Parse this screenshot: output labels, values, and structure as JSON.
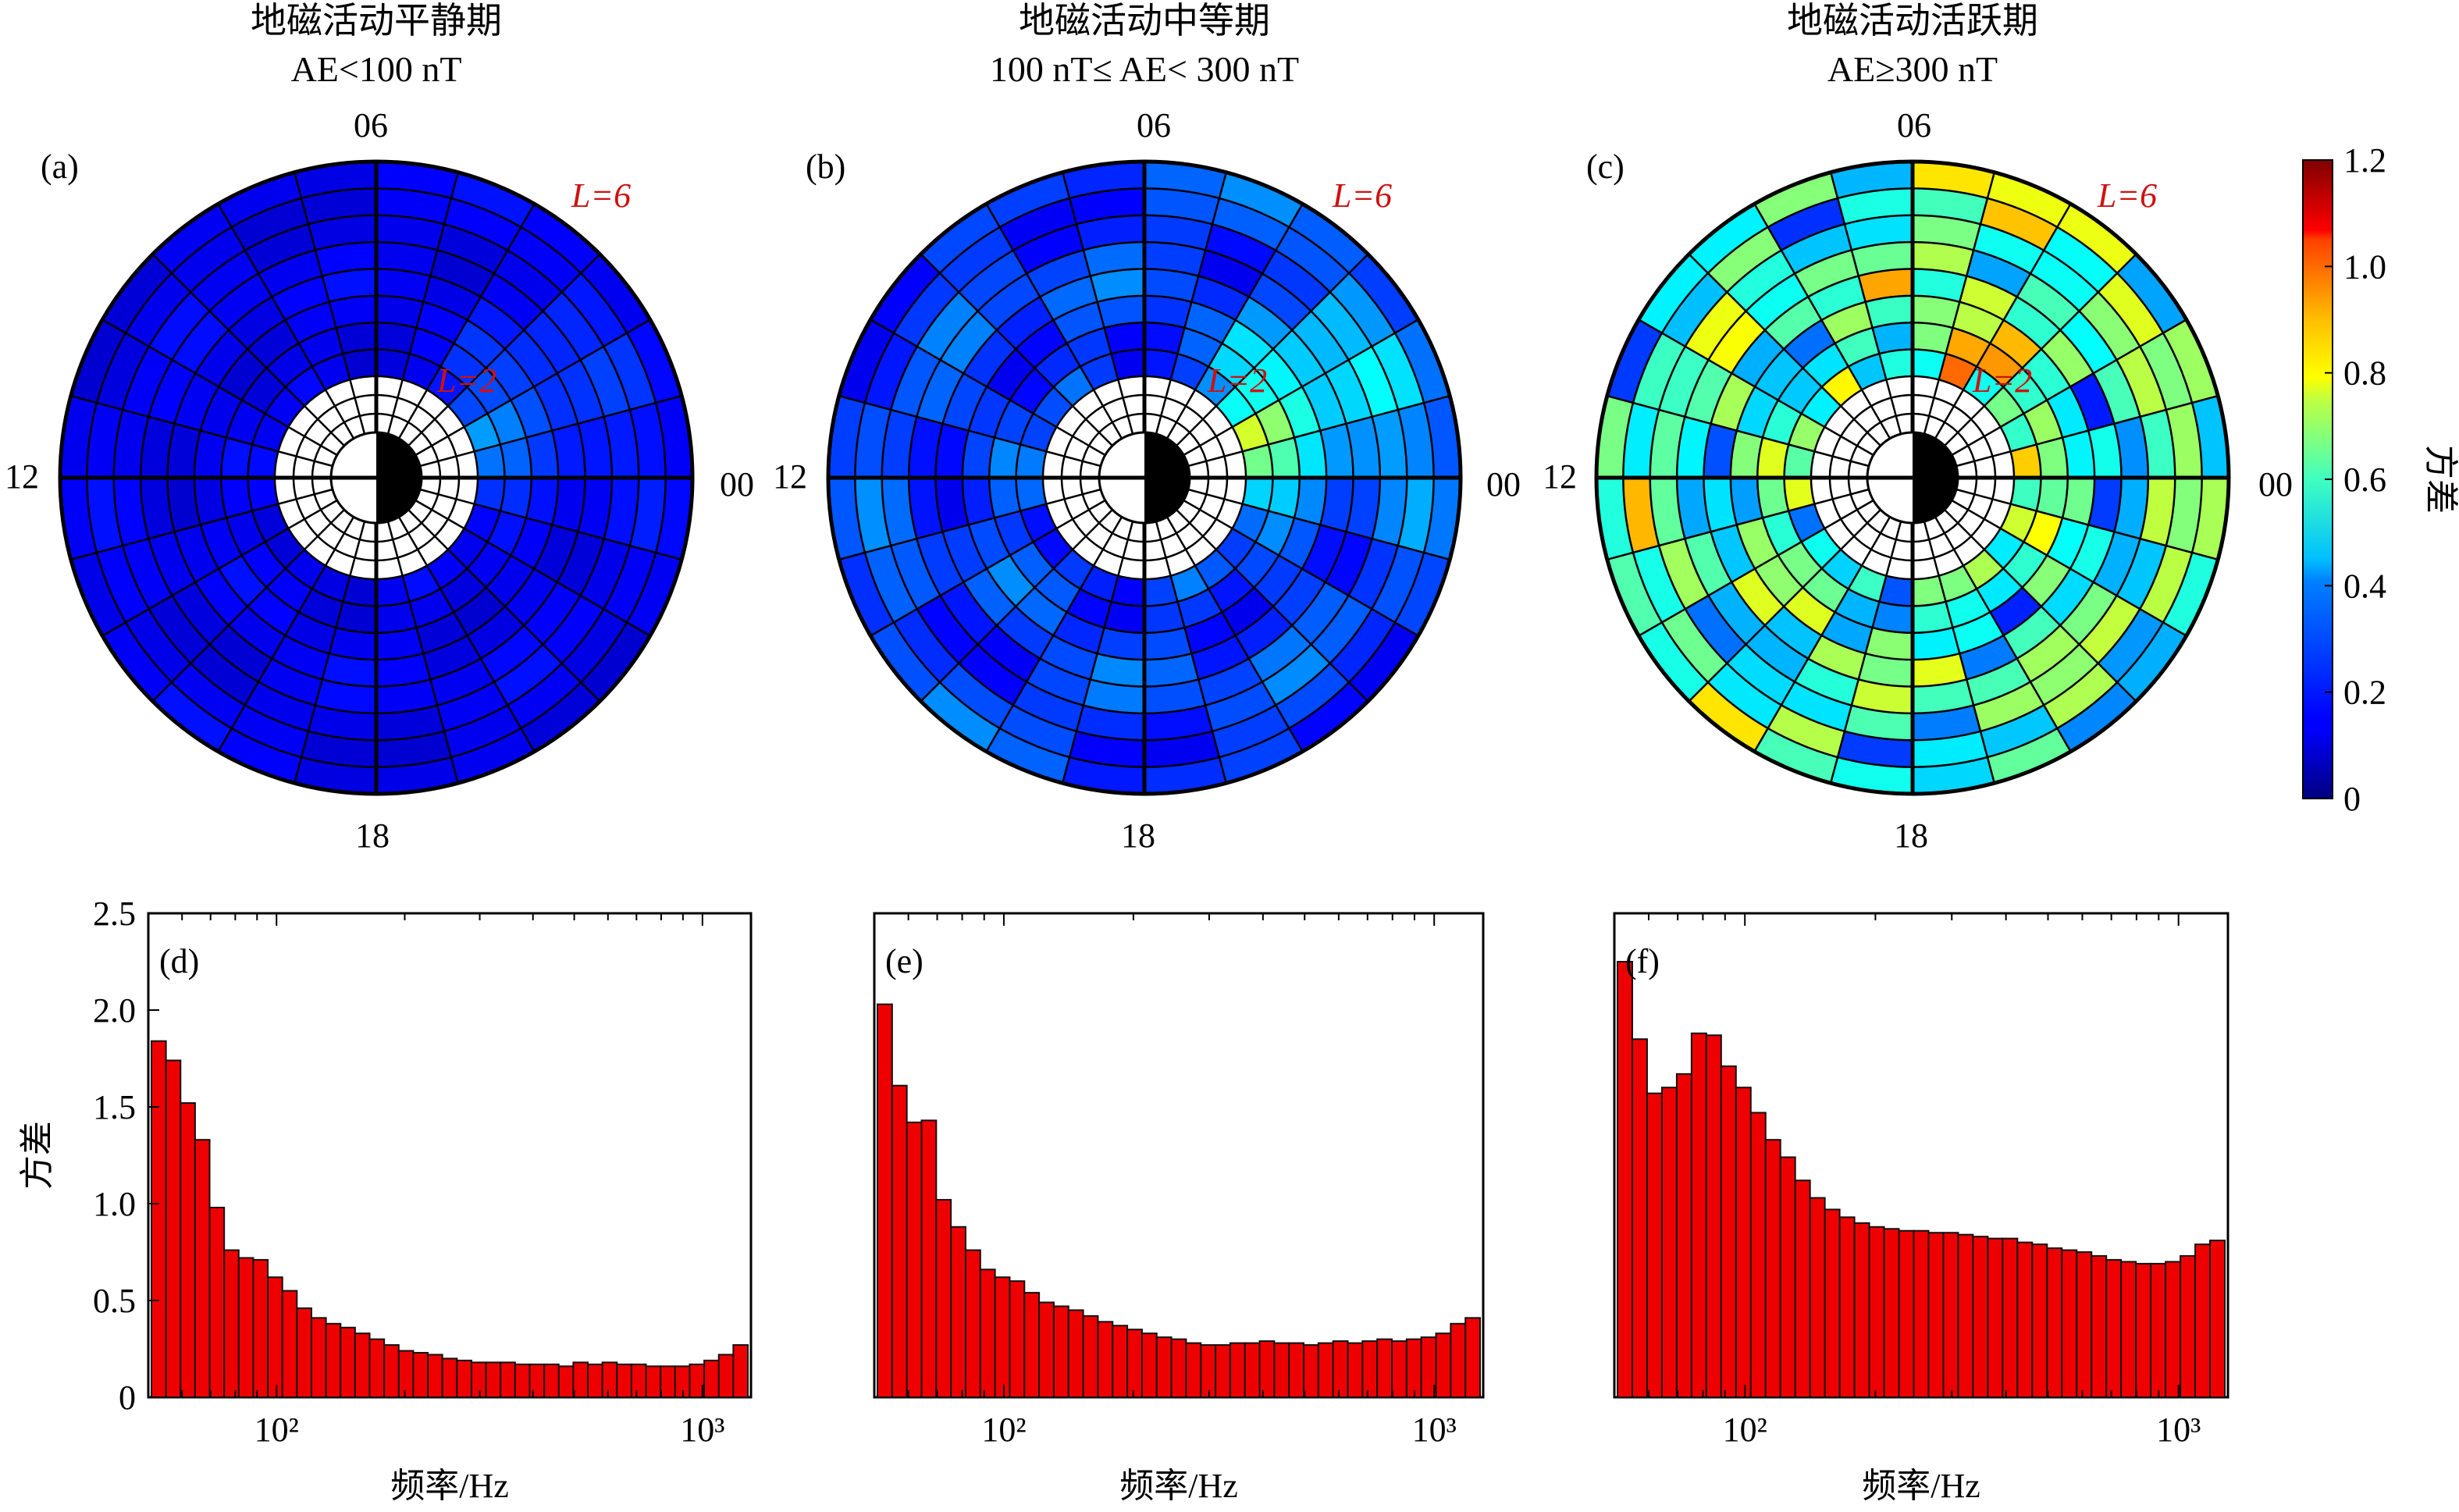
{
  "colors": {
    "bar_fill": "#ee0000",
    "polar_grid": "#000000",
    "l_marker": "#d01010",
    "colormap": "jet"
  },
  "colorbar": {
    "label": "方差",
    "ticks": [
      "0",
      "0.2",
      "0.4",
      "0.6",
      "0.8",
      "1.0",
      "1.2"
    ],
    "range": [
      0,
      1.2
    ]
  },
  "chart_data": [
    {
      "type": "heatmap",
      "projection": "polar (MLT dial)",
      "panel_label": "(a)",
      "title_line1": "地磁活动平静期",
      "title_line2": "AE<100 nT",
      "mlt_labels": {
        "top": "06",
        "left": "12",
        "right": "00",
        "bottom": "18"
      },
      "l_labels": {
        "outer": "L=6",
        "inner": "L=2"
      },
      "radial_rings": "L=2 .. L=6",
      "values_note": "variance mostly 0.1–0.25, slightly higher (0.3–0.4) near 00–03 MLT"
    },
    {
      "type": "heatmap",
      "projection": "polar (MLT dial)",
      "panel_label": "(b)",
      "title_line1": "地磁活动中等期",
      "title_line2": "100 nT≤ AE< 300 nT",
      "mlt_labels": {
        "top": "06",
        "left": "12",
        "right": "00",
        "bottom": "18"
      },
      "l_labels": {
        "outer": "L=6",
        "inner": "L=2"
      },
      "values_note": "variance 0.1–0.4, peaks ~0.6–0.7 near 00–03 MLT at low L"
    },
    {
      "type": "heatmap",
      "projection": "polar (MLT dial)",
      "panel_label": "(c)",
      "title_line1": "地磁活动活跃期",
      "title_line2": "AE≥300 nT",
      "mlt_labels": {
        "top": "06",
        "left": "12",
        "right": "00",
        "bottom": "18"
      },
      "l_labels": {
        "outer": "L=6",
        "inner": "L=2"
      },
      "values_note": "variance 0.3–0.8 widespread, peaks ~1.0–1.2 on dawn side"
    },
    {
      "type": "bar",
      "panel_label": "(d)",
      "xlabel": "频率/Hz",
      "ylabel": "方差",
      "xscale": "log",
      "x_ticks": [
        "10²",
        "10³"
      ],
      "y_ticks": [
        "0",
        "0.5",
        "1.0",
        "1.5",
        "2.0",
        "2.5"
      ],
      "xlim": [
        50,
        1300
      ],
      "ylim": [
        0,
        2.5
      ],
      "values": [
        1.84,
        1.74,
        1.52,
        1.33,
        0.98,
        0.76,
        0.72,
        0.71,
        0.62,
        0.55,
        0.46,
        0.41,
        0.38,
        0.36,
        0.33,
        0.3,
        0.27,
        0.24,
        0.23,
        0.22,
        0.2,
        0.19,
        0.18,
        0.18,
        0.18,
        0.17,
        0.17,
        0.17,
        0.16,
        0.18,
        0.17,
        0.18,
        0.17,
        0.17,
        0.16,
        0.16,
        0.16,
        0.17,
        0.19,
        0.22,
        0.27
      ]
    },
    {
      "type": "bar",
      "panel_label": "(e)",
      "xlabel": "频率/Hz",
      "xscale": "log",
      "x_ticks": [
        "10²",
        "10³"
      ],
      "xlim": [
        50,
        1300
      ],
      "ylim": [
        0,
        2.5
      ],
      "values": [
        2.03,
        1.61,
        1.42,
        1.43,
        1.02,
        0.88,
        0.76,
        0.66,
        0.62,
        0.6,
        0.54,
        0.49,
        0.47,
        0.45,
        0.42,
        0.39,
        0.37,
        0.35,
        0.33,
        0.31,
        0.3,
        0.28,
        0.27,
        0.27,
        0.28,
        0.28,
        0.29,
        0.28,
        0.28,
        0.27,
        0.28,
        0.29,
        0.28,
        0.29,
        0.3,
        0.29,
        0.3,
        0.31,
        0.33,
        0.38,
        0.41
      ]
    },
    {
      "type": "bar",
      "panel_label": "(f)",
      "xlabel": "频率/Hz",
      "xscale": "log",
      "x_ticks": [
        "10²",
        "10³"
      ],
      "xlim": [
        50,
        1300
      ],
      "ylim": [
        0,
        2.5
      ],
      "values": [
        2.25,
        1.85,
        1.57,
        1.6,
        1.67,
        1.88,
        1.87,
        1.71,
        1.6,
        1.47,
        1.33,
        1.24,
        1.12,
        1.03,
        0.97,
        0.93,
        0.9,
        0.88,
        0.87,
        0.86,
        0.86,
        0.85,
        0.85,
        0.84,
        0.83,
        0.82,
        0.82,
        0.8,
        0.79,
        0.77,
        0.76,
        0.75,
        0.73,
        0.71,
        0.7,
        0.69,
        0.69,
        0.7,
        0.73,
        0.79,
        0.81
      ]
    }
  ]
}
